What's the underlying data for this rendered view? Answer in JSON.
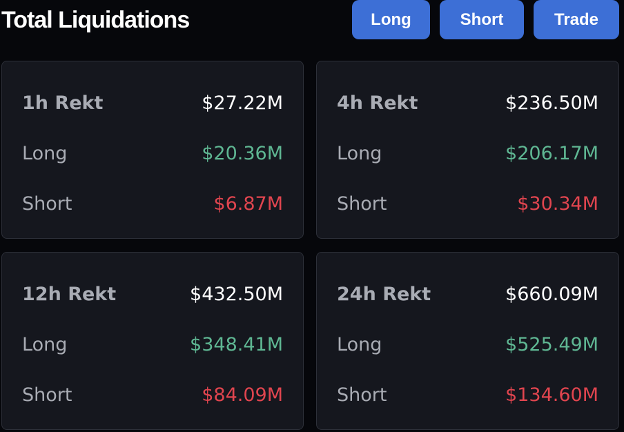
{
  "header": {
    "title": "Total Liquidations",
    "buttons": {
      "long": "Long",
      "short": "Short",
      "trade": "Trade"
    }
  },
  "colors": {
    "background": "#06070b",
    "card": "#15171e",
    "button": "#3d6fd6",
    "long": "#5fb793",
    "short": "#e1454f",
    "label": "#a9acb4"
  },
  "cards": [
    {
      "period_label": "1h Rekt",
      "total": "$27.22M",
      "long_label": "Long",
      "long_value": "$20.36M",
      "short_label": "Short",
      "short_value": "$6.87M"
    },
    {
      "period_label": "4h Rekt",
      "total": "$236.50M",
      "long_label": "Long",
      "long_value": "$206.17M",
      "short_label": "Short",
      "short_value": "$30.34M"
    },
    {
      "period_label": "12h Rekt",
      "total": "$432.50M",
      "long_label": "Long",
      "long_value": "$348.41M",
      "short_label": "Short",
      "short_value": "$84.09M"
    },
    {
      "period_label": "24h Rekt",
      "total": "$660.09M",
      "long_label": "Long",
      "long_value": "$525.49M",
      "short_label": "Short",
      "short_value": "$134.60M"
    }
  ]
}
